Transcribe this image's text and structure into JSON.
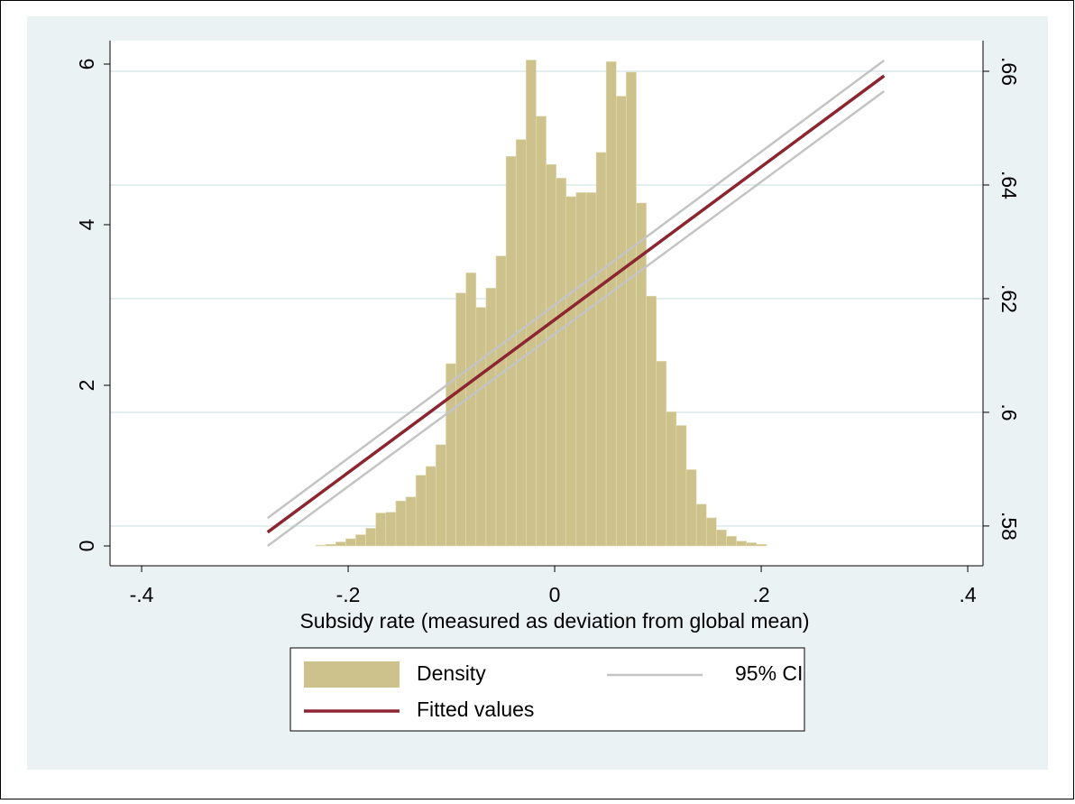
{
  "chart_data": {
    "type": "histogram",
    "xlabel": "Subsidy rate (measured as deviation from global mean)",
    "bins": [
      -0.2314,
      -0.2217,
      -0.212,
      -0.2023,
      -0.1926,
      -0.1829,
      -0.1732,
      -0.1635,
      -0.1538,
      -0.1441,
      -0.1344,
      -0.1247,
      -0.115,
      -0.1053,
      -0.0956,
      -0.0859,
      -0.0762,
      -0.0665,
      -0.0568,
      -0.0471,
      -0.0374,
      -0.0277,
      -0.018,
      -0.0083,
      0.0014,
      0.0111,
      0.0208,
      0.0305,
      0.0402,
      0.0499,
      0.0596,
      0.0693,
      0.079,
      0.0887,
      0.0984,
      0.1081,
      0.1178,
      0.1275,
      0.1372,
      0.1469,
      0.1566,
      0.1663,
      0.176,
      0.1857,
      0.1954,
      0.2051
    ],
    "series": [
      {
        "name": "Density",
        "type": "histogram",
        "color": "#cdc28c",
        "values": [
          0.01,
          0.02,
          0.05,
          0.09,
          0.14,
          0.22,
          0.41,
          0.42,
          0.56,
          0.61,
          0.88,
          0.99,
          1.26,
          2.27,
          3.15,
          3.4,
          2.97,
          3.21,
          3.61,
          4.85,
          5.06,
          6.05,
          5.35,
          4.75,
          4.58,
          4.35,
          4.4,
          4.4,
          4.9,
          6.03,
          5.6,
          5.9,
          4.27,
          3.11,
          2.3,
          1.67,
          1.5,
          0.95,
          0.52,
          0.35,
          0.2,
          0.12,
          0.06,
          0.04,
          0.02
        ]
      },
      {
        "name": "95% CI",
        "type": "ci",
        "axis": "y2",
        "color": "#c4c4c4",
        "x": [
          -0.278,
          0.319
        ],
        "lower": [
          0.5765,
          0.6565
        ],
        "upper": [
          0.5814,
          0.6619
        ]
      },
      {
        "name": "Fitted values",
        "type": "line",
        "axis": "y2",
        "color": "#8b2530",
        "x": [
          -0.278,
          0.319
        ],
        "values": [
          0.5789,
          0.6592
        ]
      }
    ],
    "xlim": [
      -0.4306,
      0.4148
    ],
    "xticks": [
      {
        "value": -0.4,
        "label": "-.4"
      },
      {
        "value": -0.2,
        "label": "-.2"
      },
      0,
      {
        "value": 0.2,
        "label": ".2"
      },
      {
        "value": 0.4,
        "label": ".4"
      }
    ],
    "ylim": [
      -0.247,
      6.292
    ],
    "yticks": [
      0,
      2,
      4,
      6
    ],
    "y2lim": [
      0.573,
      0.6654
    ],
    "y2ticks": [
      {
        "value": 0.58,
        "label": ".58"
      },
      {
        "value": 0.6,
        "label": ".6"
      },
      {
        "value": 0.62,
        "label": ".62"
      },
      {
        "value": 0.64,
        "label": ".64"
      },
      {
        "value": 0.66,
        "label": ".66"
      }
    ],
    "grid": "y2"
  }
}
